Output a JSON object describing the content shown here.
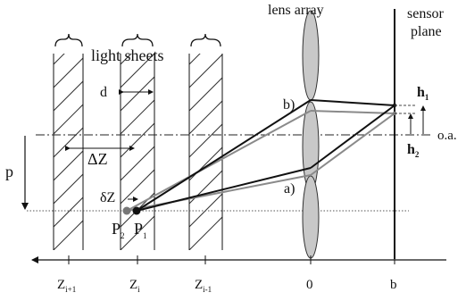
{
  "labels": {
    "lens_array": "lens array",
    "sensor_plane_line1": "sensor",
    "sensor_plane_line2": "plane",
    "light_sheets": "light sheets",
    "d": "d",
    "delta_z_big": "ΔZ",
    "p": "p",
    "delta_z_small": "δZ",
    "p2": "P",
    "p2_sub": "2",
    "p1": "P",
    "p1_sub": "1",
    "ray_b": "b)",
    "ray_a": "a)",
    "h1": "h",
    "h1_sub": "1",
    "h2": "h",
    "h2_sub": "2",
    "optical_axis": "o.a."
  },
  "axis": {
    "ticks": [
      {
        "main": "Z",
        "sub": "i+1"
      },
      {
        "main": "Z",
        "sub": "i"
      },
      {
        "main": "Z",
        "sub": "i-1"
      },
      {
        "main": "0",
        "sub": ""
      },
      {
        "main": "b",
        "sub": ""
      }
    ]
  },
  "colors": {
    "ink": "#111111",
    "ray_black": "#111111",
    "ray_gray": "#8a8a8a",
    "lens_fill": "#c8c8c8",
    "point_gray": "#777777"
  },
  "icons": {
    "brace": "curly-brace-icon",
    "arrow": "arrowhead-icon"
  }
}
